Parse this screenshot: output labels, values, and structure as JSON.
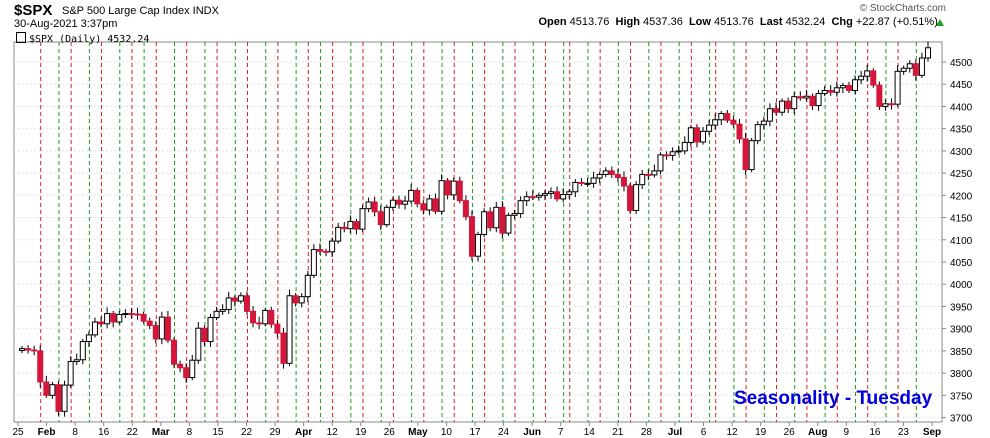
{
  "header": {
    "symbol": "$SPX",
    "name": "S&P 500 Large Cap Index INDX",
    "datetime": "30-Aug-2021 3:37pm",
    "open_label": "Open",
    "open": "4513.76",
    "high_label": "High",
    "high": "4537.36",
    "low_label": "Low",
    "low": "4513.76",
    "last_label": "Last",
    "last": "4532.24",
    "chg_label": "Chg",
    "chg": "+22.87 (+0.51%)",
    "credit": "© StockCharts.com"
  },
  "legend": {
    "text": "$SPX (Daily) 4532.24"
  },
  "annotation": "Seasonality - Tuesday",
  "colors": {
    "up": "#ffffff",
    "down": "#d5163a",
    "up_outline": "#000000",
    "red_line": "#d62020",
    "green_line": "#1e9a1e"
  },
  "chart_data": {
    "type": "candlestick",
    "y_ticks": [
      3700,
      3750,
      3800,
      3850,
      3900,
      3950,
      4000,
      4050,
      4100,
      4150,
      4200,
      4250,
      4300,
      4350,
      4400,
      4450,
      4500
    ],
    "ylim": [
      3690,
      4545
    ],
    "x_labels": [
      "25",
      "Feb",
      "8",
      "16",
      "22",
      "Mar",
      "8",
      "15",
      "22",
      "29",
      "Apr",
      "12",
      "19",
      "26",
      "May",
      "10",
      "17",
      "24",
      "Jun",
      "7",
      "14",
      "21",
      "28",
      "Jul",
      "6",
      "12",
      "19",
      "26",
      "Aug",
      "9",
      "16",
      "23",
      "Sep"
    ],
    "x_labels_bold": [
      "Feb",
      "Mar",
      "Apr",
      "May",
      "Jun",
      "Jul",
      "Aug",
      "Sep"
    ],
    "closes": [
      3855,
      3852,
      3850,
      3780,
      3750,
      3774,
      3714,
      3773,
      3826,
      3830,
      3871,
      3886,
      3915,
      3911,
      3934,
      3915,
      3932,
      3934,
      3933,
      3932,
      3917,
      3907,
      3877,
      3926,
      3874,
      3820,
      3812,
      3790,
      3829,
      3901,
      3871,
      3925,
      3939,
      3943,
      3969,
      3962,
      3974,
      3939,
      3913,
      3911,
      3941,
      3910,
      3890,
      3822,
      3974,
      3958,
      3972,
      4020,
      4078,
      4074,
      4073,
      4097,
      4128,
      4125,
      4141,
      4124,
      4170,
      4185,
      4163,
      4134,
      4173,
      4189,
      4180,
      4187,
      4211,
      4181,
      4167,
      4192,
      4164,
      4233,
      4201,
      4232,
      4188,
      4152,
      4063,
      4112,
      4163,
      4127,
      4173,
      4115,
      4155,
      4159,
      4188,
      4197,
      4196,
      4200,
      4204,
      4208,
      4192,
      4202,
      4208,
      4229,
      4227,
      4227,
      4239,
      4247,
      4255,
      4247,
      4240,
      4221,
      4166,
      4224,
      4247,
      4246,
      4255,
      4291,
      4290,
      4298,
      4300,
      4319,
      4352,
      4320,
      4344,
      4358,
      4370,
      4384,
      4369,
      4360,
      4327,
      4258,
      4323,
      4359,
      4367,
      4395,
      4387,
      4412,
      4395,
      4422,
      4419,
      4423,
      4402,
      4429,
      4436,
      4432,
      4442,
      4447,
      4436,
      4460,
      4468,
      4480,
      4448,
      4400,
      4406,
      4405,
      4479,
      4486,
      4496,
      4470,
      4509,
      4532
    ],
    "tuesday_indices": [
      3,
      8,
      13,
      18,
      22,
      27,
      32,
      37,
      42,
      47,
      51,
      56,
      61,
      66,
      71,
      76,
      81,
      86,
      90,
      95,
      100,
      105,
      110,
      114,
      119,
      124,
      129,
      134,
      139,
      144
    ],
    "green_line_indices": [
      6,
      11,
      16,
      20,
      25,
      30,
      35,
      40,
      45,
      49,
      54,
      59,
      64,
      69,
      74,
      79,
      84,
      89,
      93,
      98,
      103,
      108,
      113,
      117,
      122,
      127,
      132,
      137,
      142,
      147
    ]
  }
}
